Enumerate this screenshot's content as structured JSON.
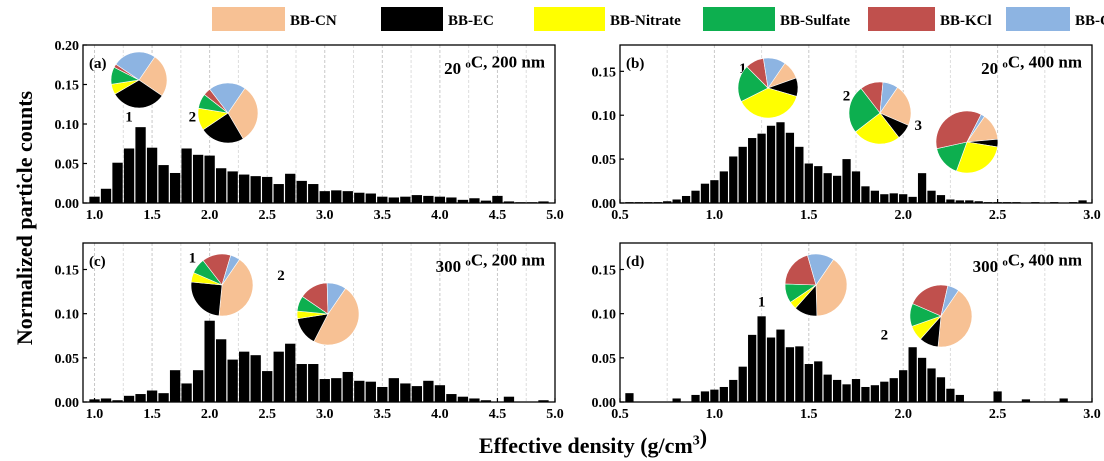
{
  "figure": {
    "ylabel": "Normalized particle counts",
    "xlabel": "Effective density (g/cm³)",
    "legend": {
      "placement": "top-center",
      "items": [
        {
          "name": "BB-CN",
          "color": "#f7c194"
        },
        {
          "name": "BB-EC",
          "color": "#000000"
        },
        {
          "name": "BB-Nitrate",
          "color": "#ffff00"
        },
        {
          "name": "BB-Sulfate",
          "color": "#0daf4f"
        },
        {
          "name": "BB-KCl",
          "color": "#c0504d"
        },
        {
          "name": "BB-OC",
          "color": "#8db4e2"
        }
      ]
    }
  },
  "chart_data": [
    {
      "type": "bar",
      "panel_label": "(a)",
      "condition": "20 °C, 200 nm",
      "xlim": [
        0.9,
        5.0
      ],
      "ylim": [
        0,
        0.2
      ],
      "xticks": [
        "1.0",
        "1.5",
        "2.0",
        "2.5",
        "3.0",
        "3.5",
        "4.0",
        "4.5",
        "5.0"
      ],
      "yticks": [
        "0.00",
        "0.05",
        "0.10",
        "0.15",
        "0.20"
      ],
      "grid": "vertical dashed",
      "bin_width": 0.1,
      "x": [
        1.0,
        1.1,
        1.2,
        1.3,
        1.4,
        1.5,
        1.6,
        1.7,
        1.8,
        1.9,
        2.0,
        2.1,
        2.2,
        2.3,
        2.4,
        2.5,
        2.6,
        2.7,
        2.8,
        2.9,
        3.0,
        3.1,
        3.2,
        3.3,
        3.4,
        3.5,
        3.6,
        3.7,
        3.8,
        3.9,
        4.0,
        4.1,
        4.2,
        4.3,
        4.4,
        4.5,
        4.6,
        4.7,
        4.8,
        4.9
      ],
      "values": [
        0.008,
        0.018,
        0.051,
        0.069,
        0.096,
        0.07,
        0.048,
        0.038,
        0.069,
        0.061,
        0.06,
        0.044,
        0.04,
        0.036,
        0.034,
        0.033,
        0.024,
        0.037,
        0.028,
        0.024,
        0.015,
        0.016,
        0.015,
        0.013,
        0.012,
        0.008,
        0.007,
        0.008,
        0.01,
        0.009,
        0.008,
        0.007,
        0.004,
        0.006,
        0.003,
        0.009,
        0.002,
        0.001,
        0.001,
        0.002
      ],
      "mode_labels": [
        {
          "text": "1",
          "x": 1.3,
          "y": 0.103
        },
        {
          "text": "2",
          "x": 1.85,
          "y": 0.103
        }
      ],
      "pies": [
        {
          "mode": "1",
          "slices": [
            {
              "name": "BB-CN",
              "value": 0.25
            },
            {
              "name": "BB-EC",
              "value": 0.32
            },
            {
              "name": "BB-Nitrate",
              "value": 0.06
            },
            {
              "name": "BB-Sulfate",
              "value": 0.1
            },
            {
              "name": "BB-KCl",
              "value": 0.02
            },
            {
              "name": "BB-OC",
              "value": 0.25
            }
          ]
        },
        {
          "mode": "2",
          "slices": [
            {
              "name": "BB-CN",
              "value": 0.32
            },
            {
              "name": "BB-EC",
              "value": 0.24
            },
            {
              "name": "BB-Nitrate",
              "value": 0.12
            },
            {
              "name": "BB-Sulfate",
              "value": 0.08
            },
            {
              "name": "BB-KCl",
              "value": 0.04
            },
            {
              "name": "BB-OC",
              "value": 0.2
            }
          ]
        }
      ]
    },
    {
      "type": "bar",
      "panel_label": "(b)",
      "condition": "20 °C, 400 nm",
      "xlim": [
        0.5,
        3.0
      ],
      "ylim": [
        0,
        0.18
      ],
      "xticks": [
        "0.5",
        "1.0",
        "1.5",
        "2.0",
        "2.5",
        "3.0"
      ],
      "yticks": [
        "0.00",
        "0.05",
        "0.10",
        "0.15"
      ],
      "grid": "vertical dashed",
      "bin_width": 0.05,
      "x": [
        0.55,
        0.6,
        0.65,
        0.7,
        0.75,
        0.8,
        0.85,
        0.9,
        0.95,
        1.0,
        1.05,
        1.1,
        1.15,
        1.2,
        1.25,
        1.3,
        1.35,
        1.4,
        1.45,
        1.5,
        1.55,
        1.6,
        1.65,
        1.7,
        1.75,
        1.8,
        1.85,
        1.9,
        1.95,
        2.0,
        2.05,
        2.1,
        2.15,
        2.2,
        2.25,
        2.3,
        2.35,
        2.4,
        2.45,
        2.5,
        2.55,
        2.6,
        2.65,
        2.7,
        2.75,
        2.8,
        2.85,
        2.9,
        2.95
      ],
      "values": [
        0.001,
        0.001,
        0.001,
        0.001,
        0.002,
        0.004,
        0.008,
        0.014,
        0.022,
        0.026,
        0.036,
        0.053,
        0.064,
        0.074,
        0.079,
        0.088,
        0.092,
        0.08,
        0.064,
        0.045,
        0.042,
        0.034,
        0.031,
        0.05,
        0.036,
        0.019,
        0.014,
        0.01,
        0.011,
        0.01,
        0.007,
        0.034,
        0.014,
        0.009,
        0.004,
        0.003,
        0.003,
        0.002,
        0.001,
        0.001,
        0.001,
        0.001,
        0.0,
        0.001,
        0.0,
        0.001,
        0.0,
        0.001,
        0.003
      ],
      "mode_labels": [
        {
          "text": "1",
          "x": 1.15,
          "y": 0.148
        },
        {
          "text": "2",
          "x": 1.7,
          "y": 0.117
        },
        {
          "text": "3",
          "x": 2.08,
          "y": 0.083
        }
      ],
      "pies": [
        {
          "mode": "1",
          "slices": [
            {
              "name": "BB-CN",
              "value": 0.1
            },
            {
              "name": "BB-EC",
              "value": 0.1
            },
            {
              "name": "BB-Nitrate",
              "value": 0.38
            },
            {
              "name": "BB-Sulfate",
              "value": 0.2
            },
            {
              "name": "BB-KCl",
              "value": 0.1
            },
            {
              "name": "BB-OC",
              "value": 0.12
            }
          ]
        },
        {
          "mode": "2",
          "slices": [
            {
              "name": "BB-CN",
              "value": 0.22
            },
            {
              "name": "BB-EC",
              "value": 0.08
            },
            {
              "name": "BB-Nitrate",
              "value": 0.25
            },
            {
              "name": "BB-Sulfate",
              "value": 0.25
            },
            {
              "name": "BB-KCl",
              "value": 0.12
            },
            {
              "name": "BB-OC",
              "value": 0.08
            }
          ]
        },
        {
          "mode": "3",
          "slices": [
            {
              "name": "BB-CN",
              "value": 0.14
            },
            {
              "name": "BB-EC",
              "value": 0.04
            },
            {
              "name": "BB-Nitrate",
              "value": 0.28
            },
            {
              "name": "BB-Sulfate",
              "value": 0.16
            },
            {
              "name": "BB-KCl",
              "value": 0.36
            },
            {
              "name": "BB-OC",
              "value": 0.02
            }
          ]
        }
      ]
    },
    {
      "type": "bar",
      "panel_label": "(c)",
      "condition": "300 °C, 200 nm",
      "xlim": [
        0.9,
        5.0
      ],
      "ylim": [
        0,
        0.18
      ],
      "xticks": [
        "1.0",
        "1.5",
        "2.0",
        "2.5",
        "3.0",
        "3.5",
        "4.0",
        "4.5",
        "5.0"
      ],
      "yticks": [
        "0.00",
        "0.05",
        "0.10",
        "0.15"
      ],
      "grid": "vertical dashed",
      "bin_width": 0.1,
      "x": [
        1.0,
        1.1,
        1.2,
        1.3,
        1.4,
        1.5,
        1.6,
        1.7,
        1.8,
        1.9,
        2.0,
        2.1,
        2.2,
        2.3,
        2.4,
        2.5,
        2.6,
        2.7,
        2.8,
        2.9,
        3.0,
        3.1,
        3.2,
        3.3,
        3.4,
        3.5,
        3.6,
        3.7,
        3.8,
        3.9,
        4.0,
        4.1,
        4.2,
        4.3,
        4.4,
        4.5,
        4.6,
        4.7,
        4.8,
        4.9
      ],
      "values": [
        0.003,
        0.004,
        0.002,
        0.007,
        0.009,
        0.013,
        0.01,
        0.036,
        0.021,
        0.036,
        0.092,
        0.071,
        0.048,
        0.057,
        0.053,
        0.035,
        0.057,
        0.066,
        0.043,
        0.043,
        0.026,
        0.027,
        0.034,
        0.024,
        0.023,
        0.017,
        0.027,
        0.021,
        0.018,
        0.024,
        0.019,
        0.009,
        0.006,
        0.004,
        0.002,
        0.0,
        0.006,
        0.0,
        0.0,
        0.002
      ],
      "mode_labels": [
        {
          "text": "1",
          "x": 1.85,
          "y": 0.158
        },
        {
          "text": "2",
          "x": 2.62,
          "y": 0.138
        }
      ],
      "pies": [
        {
          "mode": "1",
          "slices": [
            {
              "name": "BB-CN",
              "value": 0.42
            },
            {
              "name": "BB-EC",
              "value": 0.25
            },
            {
              "name": "BB-Nitrate",
              "value": 0.05
            },
            {
              "name": "BB-Sulfate",
              "value": 0.08
            },
            {
              "name": "BB-KCl",
              "value": 0.15
            },
            {
              "name": "BB-OC",
              "value": 0.05
            }
          ]
        },
        {
          "mode": "2",
          "slices": [
            {
              "name": "BB-CN",
              "value": 0.48
            },
            {
              "name": "BB-EC",
              "value": 0.15
            },
            {
              "name": "BB-Nitrate",
              "value": 0.04
            },
            {
              "name": "BB-Sulfate",
              "value": 0.08
            },
            {
              "name": "BB-KCl",
              "value": 0.15
            },
            {
              "name": "BB-OC",
              "value": 0.1
            }
          ]
        }
      ]
    },
    {
      "type": "bar",
      "panel_label": "(d)",
      "condition": "300 °C, 400 nm",
      "xlim": [
        0.5,
        3.0
      ],
      "ylim": [
        0,
        0.18
      ],
      "xticks": [
        "0.5",
        "1.0",
        "1.5",
        "2.0",
        "2.5",
        "3.0"
      ],
      "yticks": [
        "0.00",
        "0.05",
        "0.10",
        "0.15"
      ],
      "grid": "vertical dashed",
      "bin_width": 0.05,
      "x": [
        0.55,
        0.6,
        0.65,
        0.7,
        0.75,
        0.8,
        0.85,
        0.9,
        0.95,
        1.0,
        1.05,
        1.1,
        1.15,
        1.2,
        1.25,
        1.3,
        1.35,
        1.4,
        1.45,
        1.5,
        1.55,
        1.6,
        1.65,
        1.7,
        1.75,
        1.8,
        1.85,
        1.9,
        1.95,
        2.0,
        2.05,
        2.1,
        2.15,
        2.2,
        2.25,
        2.3,
        2.35,
        2.4,
        2.45,
        2.5,
        2.55,
        2.6,
        2.65,
        2.7,
        2.75,
        2.8,
        2.85,
        2.9,
        2.95
      ],
      "values": [
        0.01,
        0.0,
        0.0,
        0.0,
        0.0,
        0.004,
        0.0,
        0.008,
        0.012,
        0.014,
        0.017,
        0.025,
        0.04,
        0.076,
        0.097,
        0.073,
        0.082,
        0.062,
        0.063,
        0.043,
        0.046,
        0.031,
        0.025,
        0.02,
        0.026,
        0.017,
        0.019,
        0.023,
        0.027,
        0.036,
        0.062,
        0.05,
        0.038,
        0.028,
        0.015,
        0.008,
        0.0,
        0.0,
        0.0,
        0.012,
        0.0,
        0.0,
        0.003,
        0.0,
        0.0,
        0.0,
        0.004,
        0.0,
        0.0
      ],
      "mode_labels": [
        {
          "text": "1",
          "x": 1.25,
          "y": 0.108
        },
        {
          "text": "2",
          "x": 1.9,
          "y": 0.071
        }
      ],
      "pies": [
        {
          "mode": "1",
          "slices": [
            {
              "name": "BB-CN",
              "value": 0.4
            },
            {
              "name": "BB-EC",
              "value": 0.12
            },
            {
              "name": "BB-Nitrate",
              "value": 0.04
            },
            {
              "name": "BB-Sulfate",
              "value": 0.1
            },
            {
              "name": "BB-KCl",
              "value": 0.2
            },
            {
              "name": "BB-OC",
              "value": 0.14
            }
          ]
        },
        {
          "mode": "2",
          "slices": [
            {
              "name": "BB-CN",
              "value": 0.42
            },
            {
              "name": "BB-EC",
              "value": 0.1
            },
            {
              "name": "BB-Nitrate",
              "value": 0.08
            },
            {
              "name": "BB-Sulfate",
              "value": 0.12
            },
            {
              "name": "BB-KCl",
              "value": 0.22
            },
            {
              "name": "BB-OC",
              "value": 0.06
            }
          ]
        }
      ]
    }
  ]
}
